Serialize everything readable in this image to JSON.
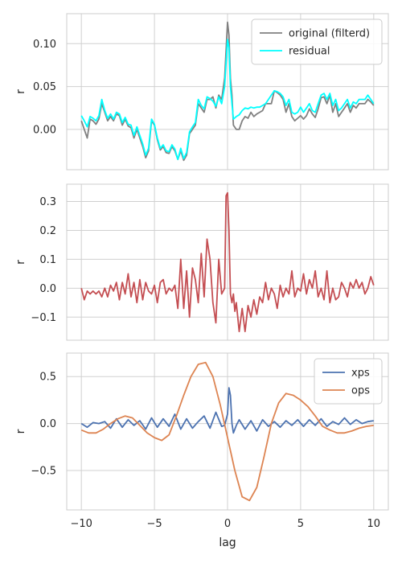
{
  "chart_data": [
    {
      "type": "line",
      "title": "",
      "xlabel": "",
      "ylabel": "r",
      "xlim": [
        -11,
        11
      ],
      "ylim": [
        -0.047,
        0.135
      ],
      "xticks": [
        -10,
        -5,
        0,
        5,
        10
      ],
      "xtick_labels": [
        "",
        "",
        "",
        "",
        ""
      ],
      "yticks": [
        0.0,
        0.05,
        0.1
      ],
      "ytick_labels": [
        "0.00",
        "0.05",
        "0.10"
      ],
      "grid": true,
      "legend": "top-right",
      "series": [
        {
          "name": "original (filterd)",
          "color": "#808080",
          "x": [
            -10,
            -9.8,
            -9.6,
            -9.4,
            -9.2,
            -9,
            -8.8,
            -8.6,
            -8.4,
            -8.2,
            -8,
            -7.8,
            -7.6,
            -7.4,
            -7.2,
            -7,
            -6.8,
            -6.6,
            -6.4,
            -6.2,
            -6,
            -5.8,
            -5.6,
            -5.4,
            -5.2,
            -5,
            -4.8,
            -4.6,
            -4.4,
            -4.2,
            -4,
            -3.8,
            -3.6,
            -3.4,
            -3.2,
            -3,
            -2.8,
            -2.6,
            -2.4,
            -2.2,
            -2,
            -1.8,
            -1.6,
            -1.4,
            -1.2,
            -1,
            -0.8,
            -0.6,
            -0.4,
            -0.2,
            0,
            0.1,
            0.2,
            0.3,
            0.4,
            0.6,
            0.8,
            1,
            1.2,
            1.4,
            1.6,
            1.8,
            2,
            2.2,
            2.4,
            2.6,
            2.8,
            3,
            3.2,
            3.4,
            3.6,
            3.8,
            4,
            4.2,
            4.4,
            4.6,
            4.8,
            5,
            5.2,
            5.4,
            5.6,
            5.8,
            6,
            6.2,
            6.4,
            6.6,
            6.8,
            7,
            7.2,
            7.4,
            7.6,
            7.8,
            8,
            8.2,
            8.4,
            8.6,
            8.8,
            9,
            9.2,
            9.4,
            9.6,
            9.8,
            10
          ],
          "y": [
            0.01,
            0.0,
            -0.01,
            0.012,
            0.01,
            0.006,
            0.012,
            0.03,
            0.02,
            0.01,
            0.015,
            0.01,
            0.018,
            0.016,
            0.005,
            0.012,
            0.004,
            0.002,
            -0.01,
            0.0,
            -0.01,
            -0.02,
            -0.033,
            -0.025,
            0.01,
            0.005,
            -0.012,
            -0.024,
            -0.02,
            -0.027,
            -0.028,
            -0.02,
            -0.025,
            -0.035,
            -0.025,
            -0.036,
            -0.03,
            -0.005,
            0.0,
            0.005,
            0.03,
            0.025,
            0.02,
            0.035,
            0.035,
            0.038,
            0.025,
            0.04,
            0.035,
            0.06,
            0.125,
            0.11,
            0.06,
            0.04,
            0.005,
            0.0,
            0.0,
            0.01,
            0.015,
            0.013,
            0.02,
            0.015,
            0.018,
            0.02,
            0.022,
            0.03,
            0.03,
            0.03,
            0.045,
            0.043,
            0.04,
            0.035,
            0.02,
            0.03,
            0.015,
            0.01,
            0.013,
            0.016,
            0.012,
            0.016,
            0.024,
            0.018,
            0.014,
            0.024,
            0.037,
            0.038,
            0.03,
            0.04,
            0.02,
            0.03,
            0.015,
            0.02,
            0.025,
            0.03,
            0.02,
            0.028,
            0.025,
            0.03,
            0.03,
            0.03,
            0.035,
            0.032,
            0.028
          ]
        },
        {
          "name": "residual",
          "color": "#00ffff",
          "x": [
            -10,
            -9.8,
            -9.6,
            -9.4,
            -9.2,
            -9,
            -8.8,
            -8.6,
            -8.4,
            -8.2,
            -8,
            -7.8,
            -7.6,
            -7.4,
            -7.2,
            -7,
            -6.8,
            -6.6,
            -6.4,
            -6.2,
            -6,
            -5.8,
            -5.6,
            -5.4,
            -5.2,
            -5,
            -4.8,
            -4.6,
            -4.4,
            -4.2,
            -4,
            -3.8,
            -3.6,
            -3.4,
            -3.2,
            -3,
            -2.8,
            -2.6,
            -2.4,
            -2.2,
            -2,
            -1.8,
            -1.6,
            -1.4,
            -1.2,
            -1,
            -0.8,
            -0.6,
            -0.4,
            -0.2,
            0,
            0.1,
            0.2,
            0.3,
            0.4,
            0.6,
            0.8,
            1,
            1.2,
            1.4,
            1.6,
            1.8,
            2,
            2.2,
            2.4,
            2.6,
            2.8,
            3,
            3.2,
            3.4,
            3.6,
            3.8,
            4,
            4.2,
            4.4,
            4.6,
            4.8,
            5,
            5.2,
            5.4,
            5.6,
            5.8,
            6,
            6.2,
            6.4,
            6.6,
            6.8,
            7,
            7.2,
            7.4,
            7.6,
            7.8,
            8,
            8.2,
            8.4,
            8.6,
            8.8,
            9,
            9.2,
            9.4,
            9.6,
            9.8,
            10
          ],
          "y": [
            0.016,
            0.01,
            0.003,
            0.015,
            0.013,
            0.01,
            0.016,
            0.035,
            0.022,
            0.013,
            0.018,
            0.012,
            0.02,
            0.018,
            0.008,
            0.014,
            0.006,
            0.005,
            -0.007,
            0.003,
            -0.007,
            -0.017,
            -0.03,
            -0.022,
            0.012,
            0.006,
            -0.01,
            -0.022,
            -0.018,
            -0.025,
            -0.026,
            -0.018,
            -0.023,
            -0.035,
            -0.022,
            -0.034,
            -0.027,
            -0.003,
            0.003,
            0.008,
            0.035,
            0.028,
            0.024,
            0.038,
            0.036,
            0.033,
            0.027,
            0.038,
            0.03,
            0.05,
            0.105,
            0.095,
            0.05,
            0.03,
            0.012,
            0.015,
            0.017,
            0.022,
            0.025,
            0.024,
            0.026,
            0.025,
            0.026,
            0.026,
            0.028,
            0.03,
            0.035,
            0.04,
            0.045,
            0.044,
            0.042,
            0.038,
            0.028,
            0.035,
            0.02,
            0.018,
            0.02,
            0.026,
            0.02,
            0.025,
            0.03,
            0.022,
            0.02,
            0.03,
            0.04,
            0.042,
            0.035,
            0.042,
            0.028,
            0.035,
            0.022,
            0.025,
            0.03,
            0.035,
            0.025,
            0.032,
            0.03,
            0.035,
            0.035,
            0.035,
            0.04,
            0.035,
            0.03
          ]
        }
      ]
    },
    {
      "type": "line",
      "title": "",
      "xlabel": "",
      "ylabel": "r",
      "xlim": [
        -11,
        11
      ],
      "ylim": [
        -0.18,
        0.36
      ],
      "xticks": [
        -10,
        -5,
        0,
        5,
        10
      ],
      "xtick_labels": [
        "",
        "",
        "",
        "",
        ""
      ],
      "yticks": [
        -0.1,
        0.0,
        0.1,
        0.2,
        0.3
      ],
      "ytick_labels": [
        "−0.1",
        "0.0",
        "0.1",
        "0.2",
        "0.3"
      ],
      "grid": true,
      "series": [
        {
          "color": "#c44e52",
          "x": [
            -10,
            -9.8,
            -9.6,
            -9.4,
            -9.2,
            -9,
            -8.8,
            -8.6,
            -8.4,
            -8.2,
            -8,
            -7.8,
            -7.6,
            -7.4,
            -7.2,
            -7,
            -6.8,
            -6.6,
            -6.4,
            -6.2,
            -6,
            -5.8,
            -5.6,
            -5.4,
            -5.2,
            -5,
            -4.8,
            -4.6,
            -4.4,
            -4.2,
            -4,
            -3.8,
            -3.6,
            -3.4,
            -3.2,
            -3,
            -2.8,
            -2.6,
            -2.4,
            -2.2,
            -2,
            -1.8,
            -1.6,
            -1.4,
            -1.2,
            -1,
            -0.8,
            -0.6,
            -0.4,
            -0.2,
            -0.1,
            0,
            0.1,
            0.2,
            0.3,
            0.4,
            0.5,
            0.6,
            0.8,
            1,
            1.2,
            1.4,
            1.6,
            1.8,
            2,
            2.2,
            2.4,
            2.6,
            2.8,
            3,
            3.2,
            3.4,
            3.6,
            3.8,
            4,
            4.2,
            4.4,
            4.6,
            4.8,
            5,
            5.2,
            5.4,
            5.6,
            5.8,
            6,
            6.2,
            6.4,
            6.6,
            6.8,
            7,
            7.2,
            7.4,
            7.6,
            7.8,
            8,
            8.2,
            8.4,
            8.6,
            8.8,
            9,
            9.2,
            9.4,
            9.6,
            9.8,
            10
          ],
          "y": [
            0.0,
            -0.04,
            -0.01,
            -0.02,
            -0.01,
            -0.02,
            -0.01,
            -0.03,
            0.0,
            -0.03,
            0.01,
            -0.01,
            0.02,
            -0.04,
            0.02,
            -0.02,
            0.05,
            -0.03,
            0.02,
            -0.05,
            0.03,
            -0.04,
            0.02,
            -0.01,
            -0.02,
            0.01,
            -0.05,
            0.02,
            0.03,
            -0.02,
            0.0,
            -0.01,
            0.01,
            -0.07,
            0.1,
            -0.07,
            0.06,
            -0.1,
            0.07,
            0.03,
            -0.05,
            0.12,
            -0.03,
            0.17,
            0.1,
            -0.05,
            -0.12,
            0.1,
            -0.02,
            0.0,
            0.32,
            0.33,
            0.2,
            -0.02,
            -0.05,
            -0.02,
            -0.08,
            -0.05,
            -0.15,
            -0.07,
            -0.15,
            -0.06,
            -0.1,
            -0.04,
            -0.09,
            -0.03,
            -0.05,
            0.02,
            -0.04,
            0.0,
            -0.02,
            -0.07,
            0.01,
            -0.03,
            0.0,
            -0.02,
            0.06,
            -0.03,
            0.0,
            -0.01,
            0.05,
            -0.02,
            0.03,
            0.0,
            0.06,
            -0.03,
            0.0,
            -0.04,
            0.06,
            -0.05,
            0.0,
            -0.04,
            -0.03,
            0.02,
            0.0,
            -0.03,
            0.02,
            0.0,
            0.03,
            0.0,
            0.02,
            -0.02,
            0.0,
            0.04,
            0.01
          ]
        }
      ]
    },
    {
      "type": "line",
      "title": "",
      "xlabel": "lag",
      "ylabel": "r",
      "xlim": [
        -11,
        11
      ],
      "ylim": [
        -0.92,
        0.75
      ],
      "xticks": [
        -10,
        -5,
        0,
        5,
        10
      ],
      "xtick_labels": [
        "−10",
        "−5",
        "0",
        "5",
        "10"
      ],
      "yticks": [
        -0.5,
        0.0,
        0.5
      ],
      "ytick_labels": [
        "−0.5",
        "0.0",
        "0.5"
      ],
      "grid": true,
      "legend": "top-right",
      "series": [
        {
          "name": "xps",
          "color": "#4c72b0",
          "x": [
            -10,
            -9.6,
            -9.2,
            -8.8,
            -8.4,
            -8,
            -7.6,
            -7.2,
            -6.8,
            -6.4,
            -6,
            -5.6,
            -5.2,
            -4.8,
            -4.4,
            -4,
            -3.6,
            -3.2,
            -2.8,
            -2.4,
            -2,
            -1.6,
            -1.2,
            -0.8,
            -0.4,
            -0.2,
            0,
            0.1,
            0.2,
            0.3,
            0.4,
            0.6,
            0.8,
            1.2,
            1.6,
            2,
            2.4,
            2.8,
            3.2,
            3.6,
            4,
            4.4,
            4.8,
            5.2,
            5.6,
            6,
            6.4,
            6.8,
            7.2,
            7.6,
            8,
            8.4,
            8.8,
            9.2,
            9.6,
            10
          ],
          "y": [
            0.0,
            -0.04,
            0.01,
            0.0,
            0.02,
            -0.05,
            0.05,
            -0.04,
            0.04,
            -0.02,
            0.03,
            -0.06,
            0.06,
            -0.04,
            0.05,
            -0.03,
            0.1,
            -0.06,
            0.05,
            -0.05,
            0.02,
            0.08,
            -0.05,
            0.12,
            -0.03,
            -0.02,
            0.1,
            0.38,
            0.3,
            0.0,
            -0.1,
            -0.02,
            0.04,
            -0.06,
            0.03,
            -0.08,
            0.04,
            -0.03,
            0.02,
            -0.04,
            0.03,
            -0.02,
            0.04,
            -0.03,
            0.04,
            -0.02,
            0.05,
            -0.03,
            0.02,
            -0.01,
            0.06,
            -0.01,
            0.04,
            0.0,
            0.02,
            0.03
          ]
        },
        {
          "name": "ops",
          "color": "#dd8452",
          "x": [
            -10,
            -9.5,
            -9,
            -8.5,
            -8,
            -7.5,
            -7,
            -6.5,
            -6,
            -5.5,
            -5,
            -4.5,
            -4,
            -3.5,
            -3,
            -2.5,
            -2,
            -1.5,
            -1,
            -0.5,
            0,
            0.5,
            1,
            1.5,
            2,
            2.5,
            3,
            3.5,
            4,
            4.5,
            5,
            5.5,
            6,
            6.5,
            7,
            7.5,
            8,
            8.5,
            9,
            9.5,
            10
          ],
          "y": [
            -0.07,
            -0.1,
            -0.1,
            -0.06,
            0.0,
            0.05,
            0.08,
            0.06,
            -0.02,
            -0.1,
            -0.15,
            -0.18,
            -0.12,
            0.08,
            0.3,
            0.5,
            0.63,
            0.65,
            0.5,
            0.2,
            -0.15,
            -0.5,
            -0.78,
            -0.82,
            -0.68,
            -0.35,
            0.0,
            0.22,
            0.32,
            0.3,
            0.25,
            0.18,
            0.08,
            -0.03,
            -0.07,
            -0.1,
            -0.1,
            -0.08,
            -0.05,
            -0.03,
            -0.02
          ]
        }
      ]
    }
  ]
}
